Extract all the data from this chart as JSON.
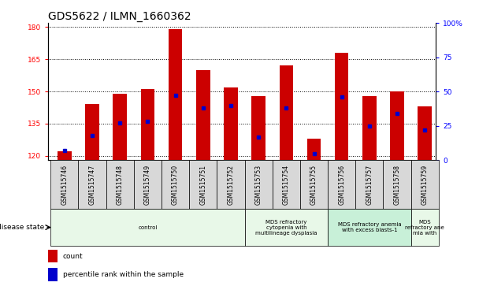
{
  "title": "GDS5622 / ILMN_1660362",
  "samples": [
    "GSM1515746",
    "GSM1515747",
    "GSM1515748",
    "GSM1515749",
    "GSM1515750",
    "GSM1515751",
    "GSM1515752",
    "GSM1515753",
    "GSM1515754",
    "GSM1515755",
    "GSM1515756",
    "GSM1515757",
    "GSM1515758",
    "GSM1515759"
  ],
  "counts": [
    122,
    144,
    149,
    151,
    179,
    160,
    152,
    148,
    162,
    128,
    168,
    148,
    150,
    143
  ],
  "percentile_ranks": [
    7,
    18,
    27,
    28,
    47,
    38,
    40,
    17,
    38,
    5,
    46,
    25,
    34,
    22
  ],
  "ylim_left": [
    118,
    182
  ],
  "ylim_right": [
    0,
    100
  ],
  "yticks_left": [
    120,
    135,
    150,
    165,
    180
  ],
  "yticks_right": [
    0,
    25,
    50,
    75,
    100
  ],
  "ytick_right_labels": [
    "0",
    "25",
    "50",
    "75",
    "100%"
  ],
  "bar_color": "#cc0000",
  "dot_color": "#0000cc",
  "bar_bottom": 118,
  "disease_groups": [
    {
      "label": "control",
      "start": 0,
      "end": 7
    },
    {
      "label": "MDS refractory\ncytopenia with\nmultilineage dysplasia",
      "start": 7,
      "end": 10
    },
    {
      "label": "MDS refractory anemia\nwith excess blasts-1",
      "start": 10,
      "end": 13
    },
    {
      "label": "MDS\nrefractory ane\nmia with",
      "start": 13,
      "end": 14
    }
  ],
  "group_colors": [
    "#e8f8e8",
    "#e8f8e8",
    "#c8f0d8",
    "#e8f8e8"
  ],
  "xtick_box_color": "#d8d8d8",
  "legend_count_label": "count",
  "legend_pct_label": "percentile rank within the sample",
  "disease_state_label": "disease state",
  "background_color": "#ffffff",
  "title_fontsize": 10,
  "tick_fontsize": 6.5,
  "bar_width": 0.5,
  "xlim": [
    -0.6,
    13.4
  ]
}
